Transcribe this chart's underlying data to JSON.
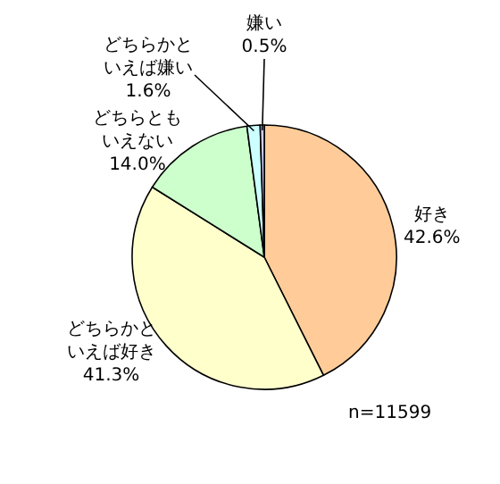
{
  "chart_data": {
    "type": "pie",
    "categories": [
      "好き",
      "どちらかといえば好き",
      "どちらともいえない",
      "どちらかといえば嫌い",
      "嫌い"
    ],
    "values": [
      42.6,
      41.3,
      14.0,
      1.6,
      0.5
    ],
    "colors": [
      "#ffcc99",
      "#ffffcc",
      "#ccffcc",
      "#ccffff",
      "#ccccff"
    ],
    "value_labels": [
      "42.6%",
      "41.3%",
      "14.0%",
      "1.6%",
      "0.5%"
    ],
    "annotations": [
      "n=11599"
    ]
  }
}
